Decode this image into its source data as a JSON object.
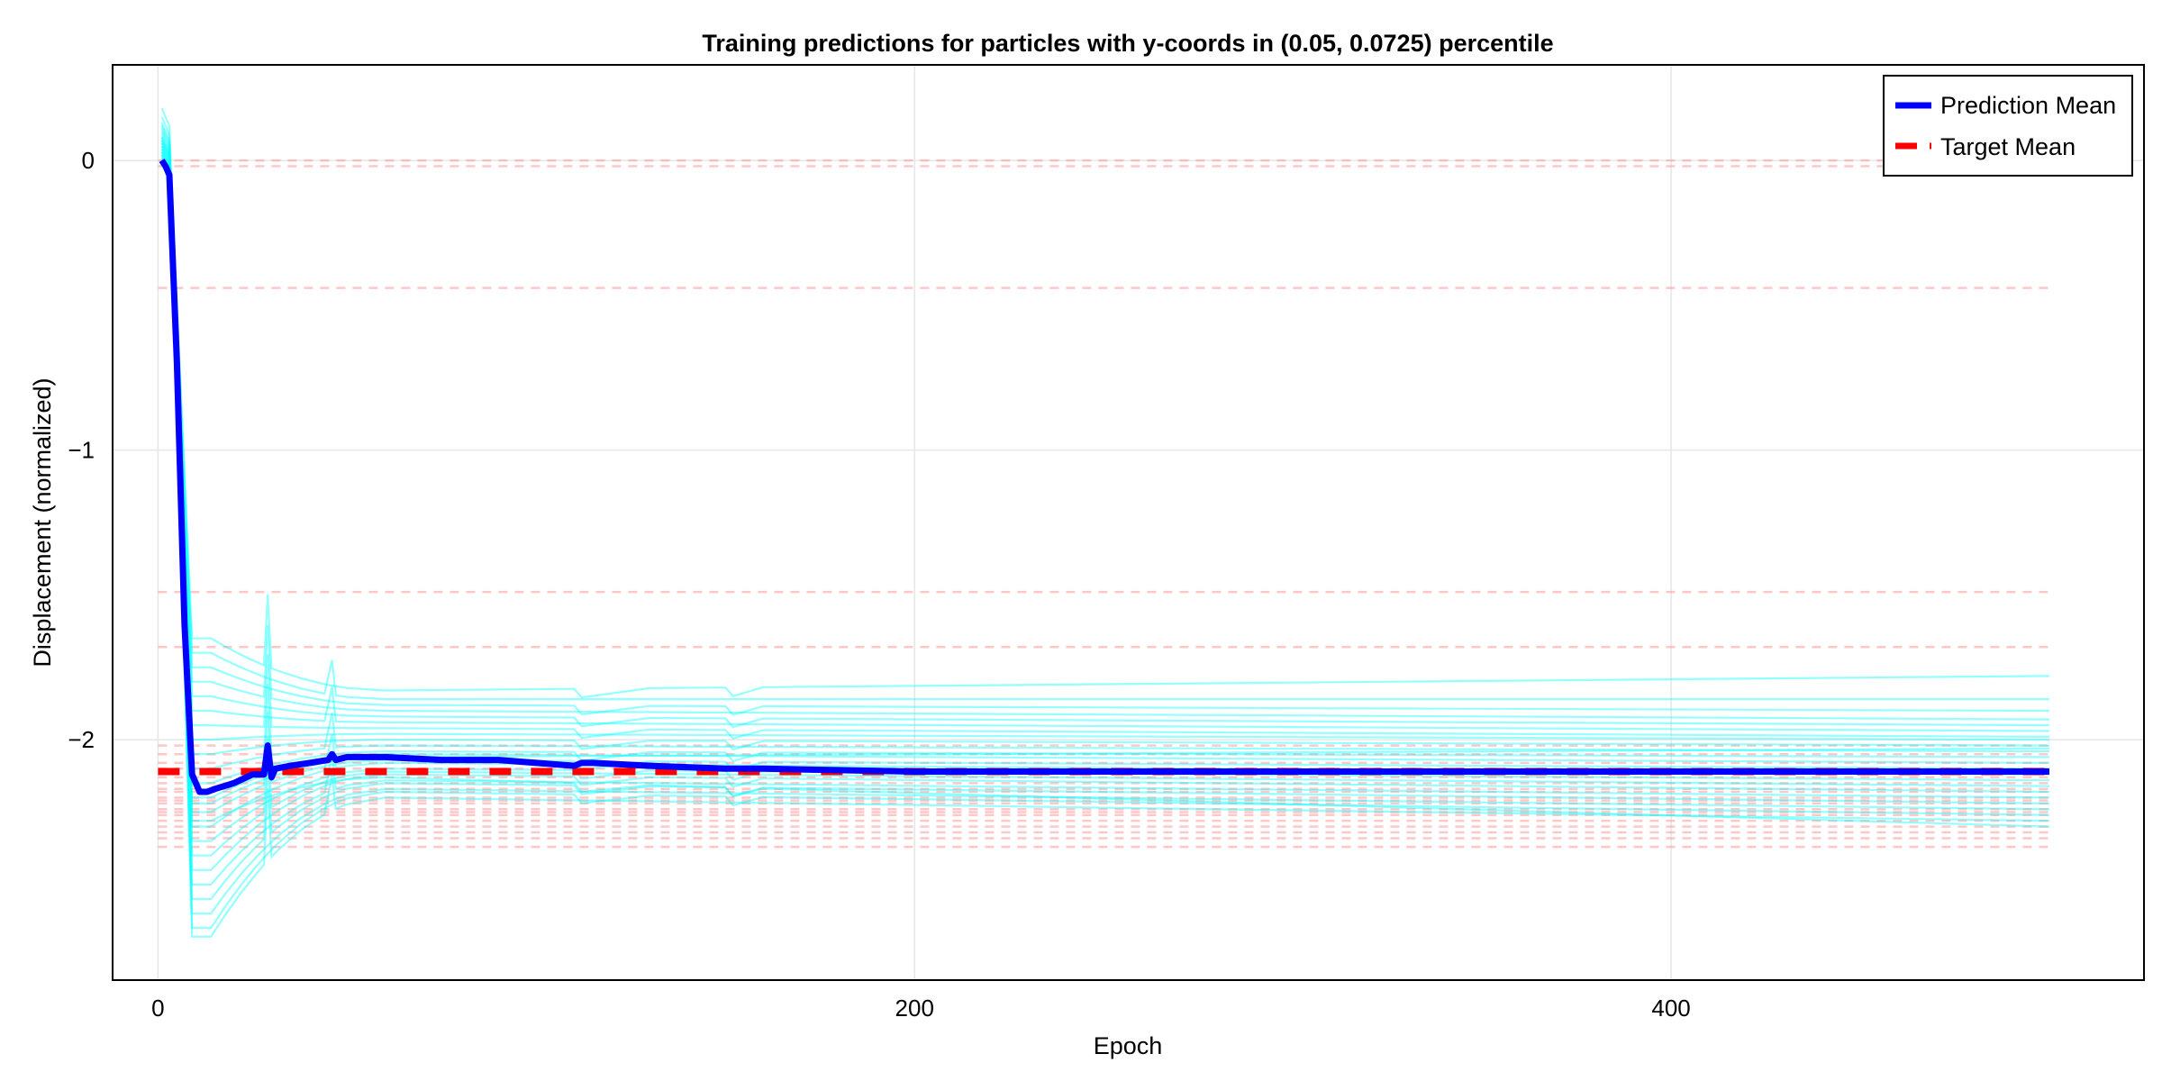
{
  "chart_data": {
    "type": "line",
    "title": "Training predictions for particles with y-coords in (0.05, 0.0725) percentile",
    "xlabel": "Epoch",
    "ylabel": "Displacement (normalized)",
    "xlim": [
      -12,
      525
    ],
    "ylim": [
      -2.83,
      0.33
    ],
    "xticks": [
      0,
      200,
      400
    ],
    "yticks": [
      0,
      -1,
      -2
    ],
    "xtick_labels": [
      "0",
      "200",
      "400"
    ],
    "ytick_labels": [
      "0",
      "−1",
      "−2"
    ],
    "grid": true,
    "legend_position": "top-right",
    "legend": [
      {
        "label": "Prediction Mean",
        "style": "solid",
        "color": "#0000ff"
      },
      {
        "label": "Target Mean",
        "style": "dashed",
        "color": "#ff0000"
      }
    ],
    "colors": {
      "prediction_mean": "#0000ff",
      "target_mean": "#ff0000",
      "particle_predictions": "#00ffff",
      "particle_targets": "#ff9a9a"
    },
    "epoch_end": 500,
    "series": [
      {
        "name": "Prediction Mean",
        "x": [
          1,
          2,
          3,
          5,
          7,
          9,
          11,
          13,
          15,
          20,
          25,
          28,
          29,
          30,
          31,
          35,
          40,
          45,
          46,
          47,
          50,
          60,
          75,
          90,
          100,
          110,
          112,
          115,
          130,
          150,
          155,
          160,
          200,
          250,
          300,
          350,
          400,
          450,
          500
        ],
        "y": [
          0,
          -0.02,
          -0.05,
          -0.7,
          -1.6,
          -2.12,
          -2.18,
          -2.18,
          -2.17,
          -2.15,
          -2.12,
          -2.12,
          -2.02,
          -2.13,
          -2.1,
          -2.09,
          -2.08,
          -2.07,
          -2.05,
          -2.07,
          -2.06,
          -2.06,
          -2.07,
          -2.07,
          -2.08,
          -2.09,
          -2.08,
          -2.08,
          -2.09,
          -2.1,
          -2.1,
          -2.1,
          -2.11,
          -2.11,
          -2.11,
          -2.11,
          -2.11,
          -2.11,
          -2.11
        ]
      },
      {
        "name": "Target Mean",
        "x": [
          0,
          500
        ],
        "y": [
          -2.11,
          -2.11
        ]
      }
    ],
    "particle_targets": [
      0.0,
      -0.02,
      -0.44,
      -1.49,
      -1.68,
      -2.02,
      -2.05,
      -2.08,
      -2.1,
      -2.13,
      -2.15,
      -2.17,
      -2.18,
      -2.2,
      -2.21,
      -2.22,
      -2.24,
      -2.25,
      -2.26,
      -2.28,
      -2.3,
      -2.32,
      -2.34,
      -2.37
    ],
    "particle_predictions": [
      {
        "start": 0.08,
        "trough": -1.65,
        "plateau": -1.83,
        "end": -1.78
      },
      {
        "start": 0.04,
        "trough": -1.7,
        "plateau": -1.86,
        "end": -1.86
      },
      {
        "start": 0.12,
        "trough": -1.75,
        "plateau": -1.88,
        "end": -1.9
      },
      {
        "start": 0.02,
        "trough": -1.8,
        "plateau": -1.9,
        "end": -1.93
      },
      {
        "start": 0.05,
        "trough": -1.85,
        "plateau": -1.92,
        "end": -1.95
      },
      {
        "start": 0.1,
        "trough": -1.9,
        "plateau": -1.94,
        "end": -1.97
      },
      {
        "start": 0.0,
        "trough": -1.95,
        "plateau": -1.96,
        "end": -1.99
      },
      {
        "start": 0.06,
        "trough": -2.0,
        "plateau": -1.98,
        "end": -2.0
      },
      {
        "start": 0.15,
        "trough": -2.05,
        "plateau": -2.0,
        "end": -2.02
      },
      {
        "start": 0.03,
        "trough": -2.1,
        "plateau": -2.02,
        "end": -2.04
      },
      {
        "start": 0.07,
        "trough": -2.15,
        "plateau": -2.04,
        "end": -2.06
      },
      {
        "start": 0.01,
        "trough": -2.2,
        "plateau": -2.05,
        "end": -2.08
      },
      {
        "start": 0.09,
        "trough": -2.25,
        "plateau": -2.07,
        "end": -2.1
      },
      {
        "start": 0.04,
        "trough": -2.3,
        "plateau": -2.08,
        "end": -2.12
      },
      {
        "start": 0.18,
        "trough": -2.35,
        "plateau": -2.1,
        "end": -2.14
      },
      {
        "start": 0.02,
        "trough": -2.4,
        "plateau": -2.11,
        "end": -2.16
      },
      {
        "start": 0.06,
        "trough": -2.45,
        "plateau": -2.12,
        "end": -2.18
      },
      {
        "start": 0.11,
        "trough": -2.5,
        "plateau": -2.14,
        "end": -2.2
      },
      {
        "start": 0.03,
        "trough": -2.55,
        "plateau": -2.15,
        "end": -2.22
      },
      {
        "start": 0.08,
        "trough": -2.6,
        "plateau": -2.17,
        "end": -2.24
      },
      {
        "start": 0.05,
        "trough": -2.65,
        "plateau": -2.18,
        "end": -2.26
      },
      {
        "start": 0.13,
        "trough": -2.68,
        "plateau": -2.2,
        "end": -2.28
      },
      {
        "start": 0.01,
        "trough": -2.28,
        "plateau": -2.13,
        "end": -2.3
      },
      {
        "start": 0.07,
        "trough": -2.22,
        "plateau": -2.06,
        "end": -2.03
      }
    ]
  }
}
